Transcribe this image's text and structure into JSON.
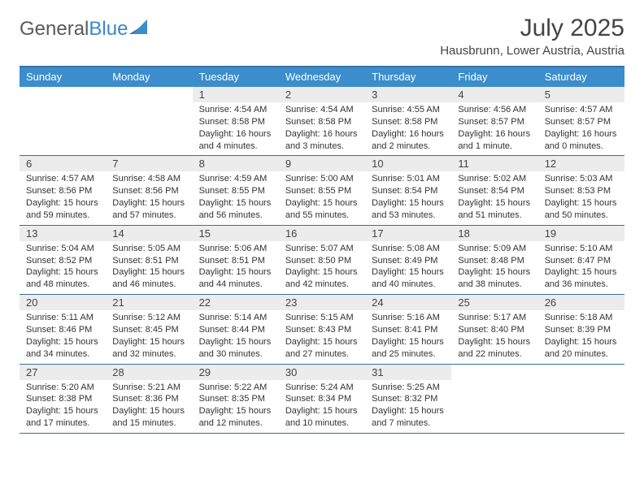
{
  "brand": {
    "part1": "General",
    "part2": "Blue"
  },
  "title": "July 2025",
  "subtitle": "Hausbrunn, Lower Austria, Austria",
  "colors": {
    "header_bg": "#3c8dcc",
    "rule": "#3a6fa0",
    "daynum_bg": "#ececec",
    "text": "#333333",
    "brand_gray": "#5a5a5a",
    "brand_blue": "#3a88c8"
  },
  "day_headers": [
    "Sunday",
    "Monday",
    "Tuesday",
    "Wednesday",
    "Thursday",
    "Friday",
    "Saturday"
  ],
  "weeks": [
    [
      null,
      null,
      {
        "n": "1",
        "sr": "4:54 AM",
        "ss": "8:58 PM",
        "dl": "16 hours and 4 minutes."
      },
      {
        "n": "2",
        "sr": "4:54 AM",
        "ss": "8:58 PM",
        "dl": "16 hours and 3 minutes."
      },
      {
        "n": "3",
        "sr": "4:55 AM",
        "ss": "8:58 PM",
        "dl": "16 hours and 2 minutes."
      },
      {
        "n": "4",
        "sr": "4:56 AM",
        "ss": "8:57 PM",
        "dl": "16 hours and 1 minute."
      },
      {
        "n": "5",
        "sr": "4:57 AM",
        "ss": "8:57 PM",
        "dl": "16 hours and 0 minutes."
      }
    ],
    [
      {
        "n": "6",
        "sr": "4:57 AM",
        "ss": "8:56 PM",
        "dl": "15 hours and 59 minutes."
      },
      {
        "n": "7",
        "sr": "4:58 AM",
        "ss": "8:56 PM",
        "dl": "15 hours and 57 minutes."
      },
      {
        "n": "8",
        "sr": "4:59 AM",
        "ss": "8:55 PM",
        "dl": "15 hours and 56 minutes."
      },
      {
        "n": "9",
        "sr": "5:00 AM",
        "ss": "8:55 PM",
        "dl": "15 hours and 55 minutes."
      },
      {
        "n": "10",
        "sr": "5:01 AM",
        "ss": "8:54 PM",
        "dl": "15 hours and 53 minutes."
      },
      {
        "n": "11",
        "sr": "5:02 AM",
        "ss": "8:54 PM",
        "dl": "15 hours and 51 minutes."
      },
      {
        "n": "12",
        "sr": "5:03 AM",
        "ss": "8:53 PM",
        "dl": "15 hours and 50 minutes."
      }
    ],
    [
      {
        "n": "13",
        "sr": "5:04 AM",
        "ss": "8:52 PM",
        "dl": "15 hours and 48 minutes."
      },
      {
        "n": "14",
        "sr": "5:05 AM",
        "ss": "8:51 PM",
        "dl": "15 hours and 46 minutes."
      },
      {
        "n": "15",
        "sr": "5:06 AM",
        "ss": "8:51 PM",
        "dl": "15 hours and 44 minutes."
      },
      {
        "n": "16",
        "sr": "5:07 AM",
        "ss": "8:50 PM",
        "dl": "15 hours and 42 minutes."
      },
      {
        "n": "17",
        "sr": "5:08 AM",
        "ss": "8:49 PM",
        "dl": "15 hours and 40 minutes."
      },
      {
        "n": "18",
        "sr": "5:09 AM",
        "ss": "8:48 PM",
        "dl": "15 hours and 38 minutes."
      },
      {
        "n": "19",
        "sr": "5:10 AM",
        "ss": "8:47 PM",
        "dl": "15 hours and 36 minutes."
      }
    ],
    [
      {
        "n": "20",
        "sr": "5:11 AM",
        "ss": "8:46 PM",
        "dl": "15 hours and 34 minutes."
      },
      {
        "n": "21",
        "sr": "5:12 AM",
        "ss": "8:45 PM",
        "dl": "15 hours and 32 minutes."
      },
      {
        "n": "22",
        "sr": "5:14 AM",
        "ss": "8:44 PM",
        "dl": "15 hours and 30 minutes."
      },
      {
        "n": "23",
        "sr": "5:15 AM",
        "ss": "8:43 PM",
        "dl": "15 hours and 27 minutes."
      },
      {
        "n": "24",
        "sr": "5:16 AM",
        "ss": "8:41 PM",
        "dl": "15 hours and 25 minutes."
      },
      {
        "n": "25",
        "sr": "5:17 AM",
        "ss": "8:40 PM",
        "dl": "15 hours and 22 minutes."
      },
      {
        "n": "26",
        "sr": "5:18 AM",
        "ss": "8:39 PM",
        "dl": "15 hours and 20 minutes."
      }
    ],
    [
      {
        "n": "27",
        "sr": "5:20 AM",
        "ss": "8:38 PM",
        "dl": "15 hours and 17 minutes."
      },
      {
        "n": "28",
        "sr": "5:21 AM",
        "ss": "8:36 PM",
        "dl": "15 hours and 15 minutes."
      },
      {
        "n": "29",
        "sr": "5:22 AM",
        "ss": "8:35 PM",
        "dl": "15 hours and 12 minutes."
      },
      {
        "n": "30",
        "sr": "5:24 AM",
        "ss": "8:34 PM",
        "dl": "15 hours and 10 minutes."
      },
      {
        "n": "31",
        "sr": "5:25 AM",
        "ss": "8:32 PM",
        "dl": "15 hours and 7 minutes."
      },
      null,
      null
    ]
  ],
  "labels": {
    "sunrise": "Sunrise:",
    "sunset": "Sunset:",
    "daylight": "Daylight:"
  }
}
